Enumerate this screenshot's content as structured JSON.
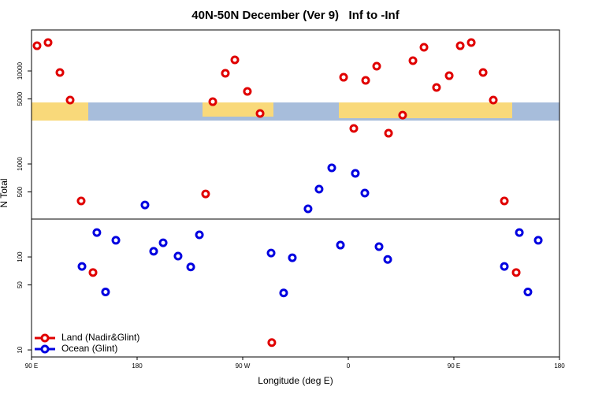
{
  "chart_data": {
    "type": "scatter",
    "title": "40N-50N December (Ver 9)   Inf to -Inf",
    "x_label": "Longitude (deg E)",
    "y_label": "N Total",
    "log_y": true,
    "legend": "bottom left",
    "xlim": [
      90,
      540
    ],
    "xticks": [
      {
        "value": 90,
        "label": "90 E"
      },
      180,
      {
        "value": 270,
        "label": "90 W"
      },
      {
        "value": 360,
        "label": "0"
      },
      {
        "value": 450,
        "label": "90 E"
      },
      {
        "value": 540,
        "label": "180"
      }
    ],
    "ylim": [
      8.4,
      27600
    ],
    "yticks": [
      10,
      50,
      100,
      500,
      1000,
      5000,
      10000
    ],
    "series": [
      {
        "name": "Land (Nadir&Glint)",
        "color": "#e00000",
        "x": [
          94.7,
          104.1,
          114.2,
          122.9,
          132.3,
          142.4,
          238.4,
          244.5,
          255.2,
          263.3,
          274.0,
          284.8,
          294.8,
          356.0,
          364.7,
          374.8,
          384.2,
          394.3,
          406.3,
          415.1,
          424.5,
          435.2,
          446.0,
          455.4,
          464.8,
          474.9,
          483.6,
          493.0,
          503.1
        ],
        "values": [
          18660,
          20190,
          9620,
          4860,
          400,
          68,
          476,
          4670,
          9440,
          13140,
          6020,
          3490,
          12,
          8550,
          2410,
          7910,
          11250,
          2140,
          3350,
          12890,
          17960,
          6640,
          8890,
          18660,
          20190,
          9620,
          4860,
          400,
          68
        ]
      },
      {
        "name": "Ocean (Glint)",
        "color": "#0000e0",
        "x": [
          133.0,
          145.7,
          153.1,
          161.9,
          186.7,
          194.1,
          202.2,
          214.9,
          225.7,
          233.1,
          294.2,
          304.9,
          312.3,
          325.7,
          335.1,
          345.9,
          353.3,
          366.0,
          374.1,
          386.2,
          393.6,
          493.0,
          505.8,
          513.1,
          521.9
        ],
        "values": [
          79,
          183,
          42,
          151,
          362,
          115,
          142,
          102,
          78,
          173,
          110,
          41,
          98,
          329,
          536,
          907,
          134,
          792,
          486,
          129,
          94,
          79,
          183,
          42,
          151
        ]
      }
    ]
  }
}
